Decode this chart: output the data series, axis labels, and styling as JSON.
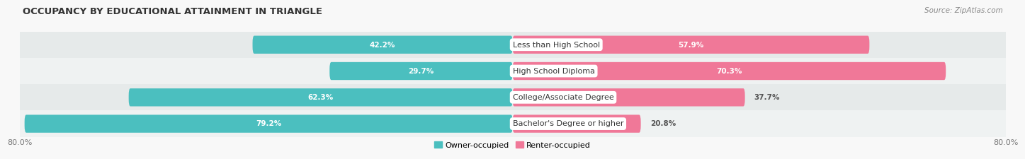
{
  "title": "OCCUPANCY BY EDUCATIONAL ATTAINMENT IN TRIANGLE",
  "source": "Source: ZipAtlas.com",
  "categories": [
    "Less than High School",
    "High School Diploma",
    "College/Associate Degree",
    "Bachelor's Degree or higher"
  ],
  "owner_values": [
    42.2,
    29.7,
    62.3,
    79.2
  ],
  "renter_values": [
    57.9,
    70.3,
    37.7,
    20.8
  ],
  "owner_color": "#4bbfbf",
  "renter_color": "#f07898",
  "row_colors": [
    "#e8ecec",
    "#edf0f0",
    "#e2e8e8",
    "#dde4e4"
  ],
  "axis_min": -80.0,
  "axis_max": 80.0,
  "axis_label_left": "80.0%",
  "axis_label_right": "80.0%",
  "legend_owner": "Owner-occupied",
  "legend_renter": "Renter-occupied",
  "title_fontsize": 9.5,
  "source_fontsize": 7.5,
  "bar_fontsize": 7.5,
  "label_fontsize": 8,
  "cat_fontsize": 8,
  "fig_bg": "#f8f8f8"
}
